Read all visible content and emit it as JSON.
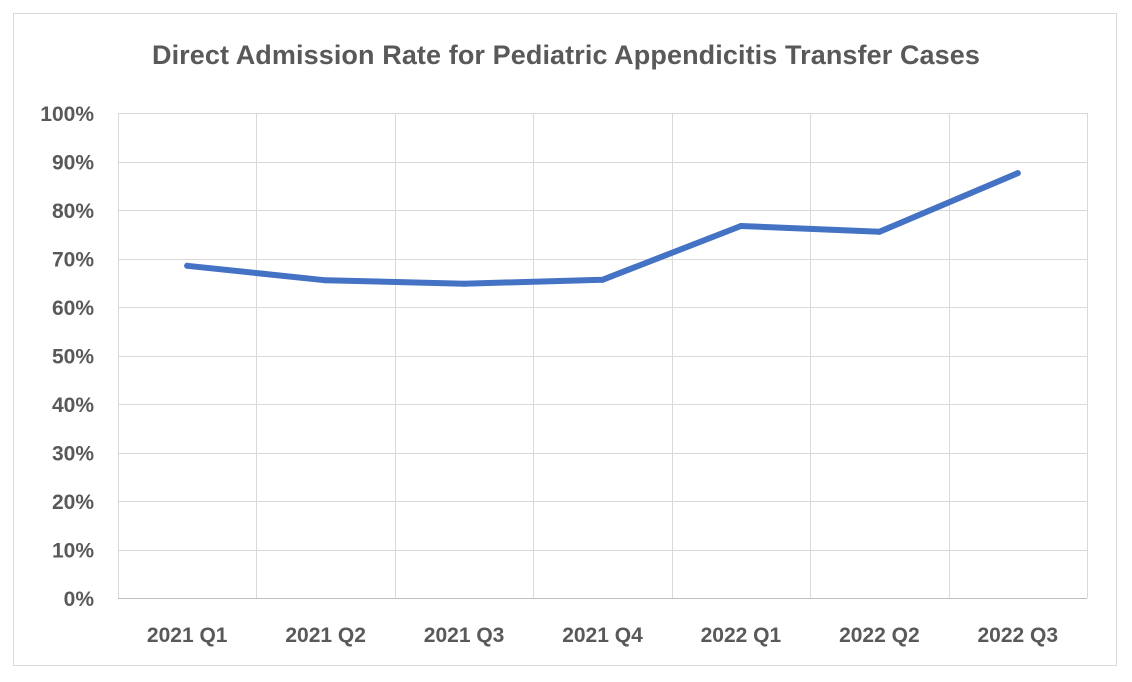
{
  "chart_data": {
    "type": "line",
    "title": "Direct Admission Rate for Pediatric Appendicitis Transfer Cases",
    "xlabel": "",
    "ylabel": "",
    "categories": [
      "2021 Q1",
      "2021 Q2",
      "2021 Q3",
      "2021 Q4",
      "2022 Q1",
      "2022 Q2",
      "2022 Q3"
    ],
    "series": [
      {
        "values": [
          68.5,
          65.5,
          64.8,
          65.6,
          76.7,
          75.5,
          87.6
        ],
        "color": "#4472c4"
      }
    ],
    "ylim": [
      0,
      100
    ],
    "yticks": [
      0,
      10,
      20,
      30,
      40,
      50,
      60,
      70,
      80,
      90,
      100
    ],
    "ytick_labels": [
      "0%",
      "10%",
      "20%",
      "30%",
      "40%",
      "50%",
      "60%",
      "70%",
      "80%",
      "90%",
      "100%"
    ],
    "grid": true,
    "legend": "none"
  }
}
